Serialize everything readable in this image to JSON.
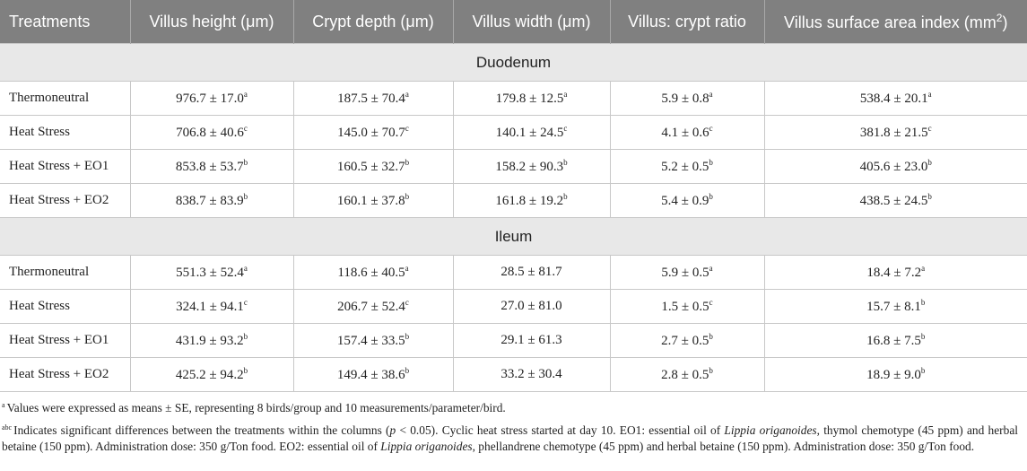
{
  "table": {
    "header": [
      "Treatments",
      "Villus height (μm)",
      "Crypt depth (μm)",
      "Villus width (μm)",
      "Villus: crypt ratio",
      {
        "text": "Villus surface area index (mm",
        "sup": "2",
        "after": ")"
      }
    ],
    "sections": [
      {
        "title": "Duodenum",
        "rows": [
          {
            "treatment": "Thermoneutral",
            "cells": [
              {
                "value": "976.7 ± 17.0",
                "sup": "a"
              },
              {
                "value": "187.5 ± 70.4",
                "sup": "a"
              },
              {
                "value": "179.8 ± 12.5",
                "sup": "a"
              },
              {
                "value": "5.9 ± 0.8",
                "sup": "a"
              },
              {
                "value": "538.4 ± 20.1",
                "sup": "a"
              }
            ]
          },
          {
            "treatment": "Heat Stress",
            "cells": [
              {
                "value": "706.8 ± 40.6",
                "sup": "c"
              },
              {
                "value": "145.0 ± 70.7",
                "sup": "c"
              },
              {
                "value": "140.1 ± 24.5",
                "sup": "c"
              },
              {
                "value": "4.1 ± 0.6",
                "sup": "c"
              },
              {
                "value": "381.8 ± 21.5",
                "sup": "c"
              }
            ]
          },
          {
            "treatment": "Heat Stress + EO1",
            "cells": [
              {
                "value": "853.8 ± 53.7",
                "sup": "b"
              },
              {
                "value": "160.5 ± 32.7",
                "sup": "b"
              },
              {
                "value": "158.2 ± 90.3",
                "sup": "b"
              },
              {
                "value": "5.2 ± 0.5",
                "sup": "b"
              },
              {
                "value": "405.6 ± 23.0",
                "sup": "b"
              }
            ]
          },
          {
            "treatment": "Heat Stress + EO2",
            "cells": [
              {
                "value": "838.7 ± 83.9",
                "sup": "b"
              },
              {
                "value": "160.1 ± 37.8",
                "sup": "b"
              },
              {
                "value": "161.8 ± 19.2",
                "sup": "b"
              },
              {
                "value": "5.4 ± 0.9",
                "sup": "b"
              },
              {
                "value": "438.5 ± 24.5",
                "sup": "b"
              }
            ]
          }
        ]
      },
      {
        "title": "Ileum",
        "rows": [
          {
            "treatment": "Thermoneutral",
            "cells": [
              {
                "value": "551.3 ± 52.4",
                "sup": "a"
              },
              {
                "value": "118.6 ± 40.5",
                "sup": "a"
              },
              {
                "value": "28.5 ± 81.7"
              },
              {
                "value": "5.9 ± 0.5",
                "sup": "a"
              },
              {
                "value": "18.4 ± 7.2",
                "sup": "a"
              }
            ]
          },
          {
            "treatment": "Heat Stress",
            "cells": [
              {
                "value": "324.1 ± 94.1",
                "sup": "c"
              },
              {
                "value": "206.7 ± 52.4",
                "sup": "c"
              },
              {
                "value": "27.0 ± 81.0"
              },
              {
                "value": "1.5 ± 0.5",
                "sup": "c"
              },
              {
                "value": "15.7 ± 8.1",
                "sup": "b"
              }
            ]
          },
          {
            "treatment": "Heat Stress + EO1",
            "cells": [
              {
                "value": "431.9 ± 93.2",
                "sup": "b"
              },
              {
                "value": "157.4 ± 33.5",
                "sup": "b"
              },
              {
                "value": "29.1 ± 61.3"
              },
              {
                "value": "2.7 ± 0.5",
                "sup": "b"
              },
              {
                "value": "16.8 ± 7.5",
                "sup": "b"
              }
            ]
          },
          {
            "treatment": "Heat Stress + EO2",
            "cells": [
              {
                "value": "425.2 ± 94.2",
                "sup": "b"
              },
              {
                "value": "149.4 ± 38.6",
                "sup": "b"
              },
              {
                "value": "33.2 ± 30.4"
              },
              {
                "value": "2.8 ± 0.5",
                "sup": "b"
              },
              {
                "value": "18.9 ± 9.0",
                "sup": "b"
              }
            ]
          }
        ]
      }
    ]
  },
  "footnotes": [
    {
      "sup": "a",
      "segments": [
        {
          "text": "Values were expressed as means ± SE, representing 8 birds/group and 10 measurements/parameter/bird."
        }
      ]
    },
    {
      "sup": "abc",
      "segments": [
        {
          "text": "Indicates significant differences between the treatments within the columns ("
        },
        {
          "text": "p",
          "italic": true
        },
        {
          "text": " < 0.05). Cyclic heat stress started at day 10. EO1: essential oil of "
        },
        {
          "text": "Lippia origanoides",
          "italic": true
        },
        {
          "text": ", thymol chemotype (45 ppm) and herbal betaine (150 ppm). Administration dose: 350 g/Ton food. EO2: essential oil of "
        },
        {
          "text": "Lippia origanoides",
          "italic": true
        },
        {
          "text": ", phellandrene chemotype (45 ppm) and herbal betaine (150 ppm). Administration dose: 350 g/Ton food."
        }
      ]
    }
  ]
}
